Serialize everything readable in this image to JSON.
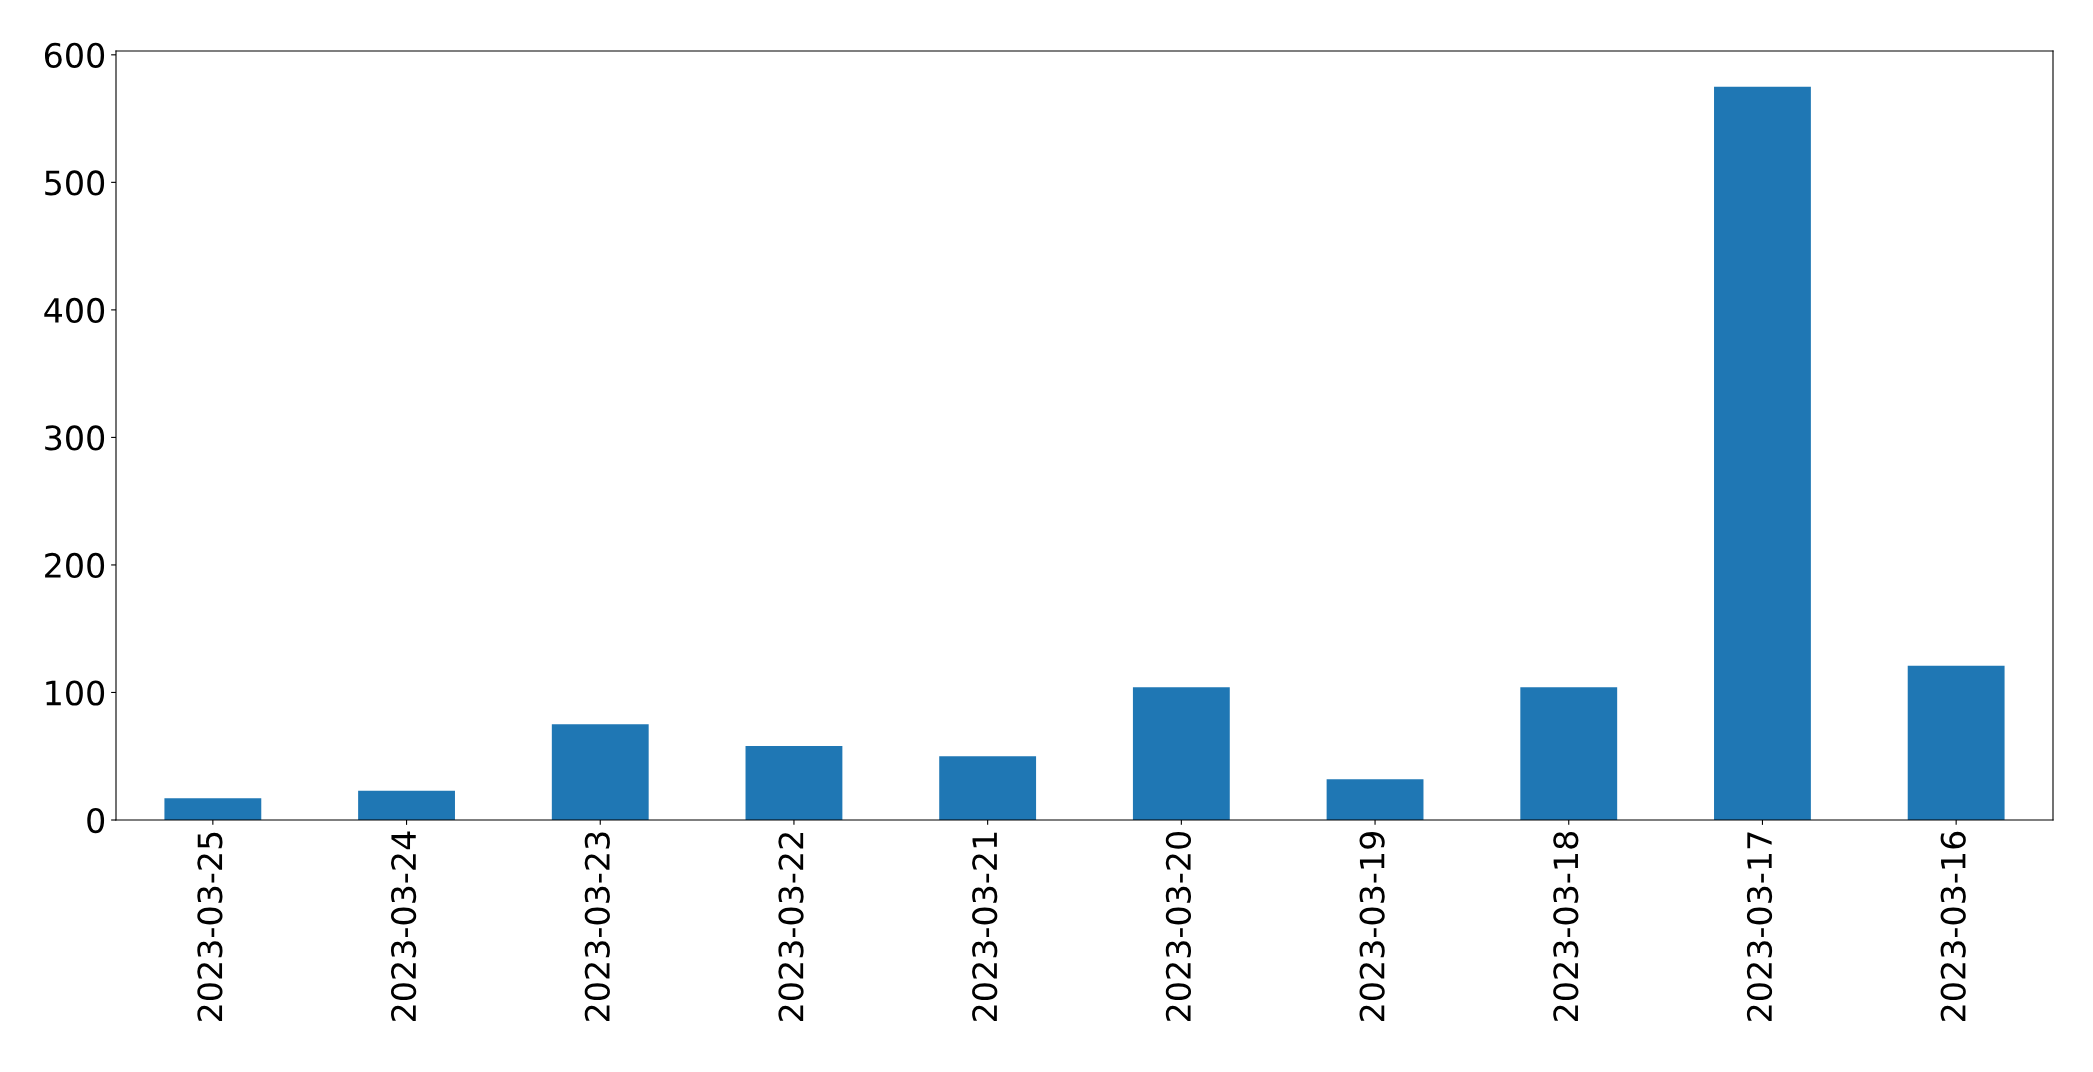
{
  "chart_data": {
    "type": "bar",
    "categories": [
      "2023-03-25",
      "2023-03-24",
      "2023-03-23",
      "2023-03-22",
      "2023-03-21",
      "2023-03-20",
      "2023-03-19",
      "2023-03-18",
      "2023-03-17",
      "2023-03-16"
    ],
    "values": [
      17,
      23,
      75,
      58,
      50,
      104,
      32,
      104,
      575,
      121
    ],
    "color": "#1f77b4",
    "ylim": [
      0,
      603
    ],
    "yticks": [
      0,
      100,
      200,
      300,
      400,
      500,
      600
    ],
    "grid": false,
    "legend": false
  }
}
